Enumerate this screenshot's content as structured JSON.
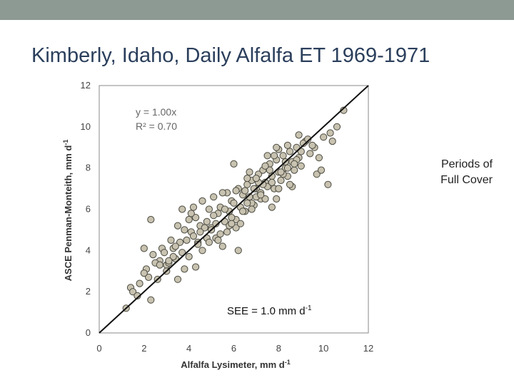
{
  "slide": {
    "title": "Kimberly, Idaho, Daily Alfalfa ET 1969-1971",
    "note_line1": "Periods of",
    "note_line2": "Full Cover",
    "accent": "#8c9a93"
  },
  "chart_data": {
    "type": "scatter",
    "title": "",
    "xlabel": "Alfalfa Lysimeter, mm d",
    "xlabel_sup": "-1",
    "ylabel": "ASCE Penman-Monteith, mm d",
    "ylabel_sup": "-1",
    "xlim": [
      0,
      12
    ],
    "ylim": [
      0,
      12
    ],
    "xticks": [
      0,
      2,
      4,
      6,
      8,
      10,
      12
    ],
    "yticks": [
      0,
      2,
      4,
      6,
      8,
      10,
      12
    ],
    "grid": false,
    "fit_line": {
      "slope": 1.0,
      "intercept": 0
    },
    "equation": "y = 1.00x",
    "r2_label": "R² = 0.70",
    "see_text": "SEE = 1.0 mm d",
    "see_sup": "-1",
    "marker_fill": "#c8c2b0",
    "marker_stroke": "#4a4a40",
    "x": [
      1.2,
      1.4,
      1.5,
      1.7,
      1.8,
      2.0,
      2.1,
      2.2,
      2.3,
      2.4,
      2.6,
      2.7,
      2.8,
      2.9,
      3.0,
      3.1,
      3.2,
      3.3,
      3.4,
      3.5,
      3.6,
      3.7,
      3.8,
      3.9,
      4.0,
      4.1,
      4.2,
      4.3,
      4.4,
      4.5,
      4.6,
      4.7,
      4.8,
      4.9,
      5.0,
      5.1,
      5.2,
      5.3,
      5.4,
      5.5,
      5.6,
      5.7,
      5.8,
      5.9,
      6.0,
      6.1,
      6.2,
      6.3,
      6.4,
      6.5,
      6.6,
      6.7,
      6.8,
      6.9,
      7.0,
      7.1,
      7.2,
      7.3,
      7.4,
      7.5,
      7.6,
      7.7,
      7.8,
      7.9,
      8.0,
      8.1,
      8.2,
      8.3,
      8.4,
      8.5,
      8.6,
      8.7,
      8.8,
      8.9,
      9.0,
      9.2,
      9.4,
      9.6,
      9.8,
      10.0,
      10.3,
      10.6,
      10.9,
      2.3,
      3.0,
      3.7,
      4.4,
      5.0,
      5.7,
      6.2,
      6.8,
      7.3,
      7.9,
      8.4,
      9.1,
      9.7,
      10.4,
      3.3,
      4.1,
      4.8,
      5.5,
      6.1,
      6.7,
      7.2,
      7.8,
      8.6,
      9.3,
      4.3,
      5.2,
      5.9,
      6.5,
      7.1,
      7.7,
      8.2,
      8.8,
      9.5,
      6.0,
      6.6,
      7.4,
      8.0,
      8.5,
      5.6,
      6.3,
      7.0,
      7.6,
      8.3,
      2.0,
      2.5,
      3.5,
      4.6,
      5.3,
      6.4,
      6.9,
      7.5,
      8.1,
      8.9,
      9.9,
      4.0,
      4.9,
      5.8,
      6.6,
      7.2,
      7.9,
      8.7,
      3.1,
      3.8,
      4.5,
      5.1,
      5.9,
      6.8,
      7.4,
      8.0,
      2.7,
      3.4,
      4.2,
      5.4,
      6.1,
      7.0,
      7.7,
      8.4,
      9.0,
      10.2
    ],
    "y": [
      1.2,
      2.2,
      2.0,
      1.8,
      2.4,
      4.1,
      3.1,
      2.7,
      1.6,
      3.8,
      2.6,
      3.5,
      4.1,
      3.9,
      3.3,
      3.4,
      4.5,
      4.1,
      3.6,
      5.2,
      4.4,
      3.9,
      5.0,
      4.5,
      5.5,
      4.9,
      4.7,
      5.6,
      4.4,
      5.2,
      6.4,
      5.1,
      5.4,
      6.0,
      5.1,
      6.6,
      5.3,
      5.8,
      6.1,
      4.2,
      5.4,
      6.8,
      5.9,
      6.4,
      6.3,
      5.5,
      7.0,
      6.1,
      6.7,
      5.9,
      7.2,
      6.6,
      7.4,
      6.2,
      7.0,
      7.7,
      6.8,
      7.9,
      7.3,
      7.1,
      8.2,
      7.6,
      7.0,
      8.4,
      7.8,
      7.4,
      8.6,
      8.0,
      7.6,
      8.8,
      8.3,
      7.9,
      9.0,
      8.5,
      8.1,
      9.3,
      8.7,
      9.0,
      8.5,
      9.5,
      9.7,
      10.0,
      10.8,
      5.5,
      3.0,
      6.0,
      4.3,
      5.0,
      4.9,
      4.0,
      6.3,
      7.2,
      6.5,
      8.0,
      9.2,
      7.7,
      9.3,
      3.7,
      5.8,
      4.6,
      6.8,
      5.1,
      7.8,
      6.5,
      8.6,
      7.1,
      9.4,
      3.2,
      4.6,
      5.6,
      6.9,
      7.3,
      6.1,
      7.7,
      8.4,
      9.1,
      8.2,
      7.5,
      6.5,
      8.9,
      7.2,
      6.0,
      5.3,
      6.6,
      7.9,
      8.3,
      2.9,
      3.4,
      2.6,
      4.0,
      4.5,
      5.9,
      7.0,
      8.6,
      7.8,
      9.6,
      7.9,
      3.7,
      4.4,
      5.2,
      6.3,
      6.7,
      9.0,
      8.2,
      3.5,
      3.1,
      4.9,
      5.7,
      5.3,
      6.0,
      8.1,
      7.0,
      3.3,
      4.2,
      6.1,
      4.8,
      6.9,
      7.5,
      7.3,
      9.1,
      8.8,
      7.2
    ]
  }
}
